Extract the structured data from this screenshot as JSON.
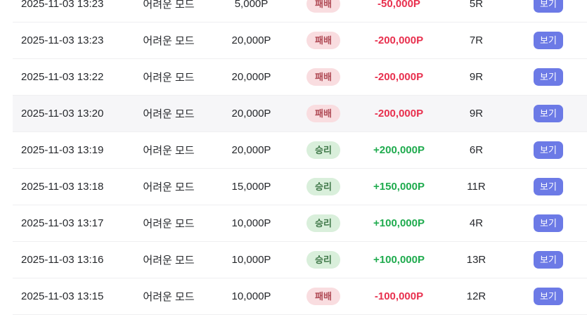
{
  "colors": {
    "win_text": "#1fab4e",
    "lose_text": "#e8304e",
    "win_badge_bg": "#d9efdb",
    "win_badge_text": "#41794a",
    "lose_badge_bg": "#f9dde0",
    "lose_badge_text": "#b04a55",
    "view_button_bg": "#6c7ae6",
    "highlight_row_bg": "#f6f6f8",
    "row_separator": "#efeff1"
  },
  "table": {
    "view_button_label": "보기",
    "rows": [
      {
        "time": "2025-11-03 13:23",
        "mode": "어려운 모드",
        "bet": "5,000P",
        "result": "lose",
        "result_label": "패배",
        "amount": "-50,000P",
        "rounds": "5R",
        "highlighted": false
      },
      {
        "time": "2025-11-03 13:23",
        "mode": "어려운 모드",
        "bet": "20,000P",
        "result": "lose",
        "result_label": "패배",
        "amount": "-200,000P",
        "rounds": "7R",
        "highlighted": false
      },
      {
        "time": "2025-11-03 13:22",
        "mode": "어려운 모드",
        "bet": "20,000P",
        "result": "lose",
        "result_label": "패배",
        "amount": "-200,000P",
        "rounds": "9R",
        "highlighted": false
      },
      {
        "time": "2025-11-03 13:20",
        "mode": "어려운 모드",
        "bet": "20,000P",
        "result": "lose",
        "result_label": "패배",
        "amount": "-200,000P",
        "rounds": "9R",
        "highlighted": true
      },
      {
        "time": "2025-11-03 13:19",
        "mode": "어려운 모드",
        "bet": "20,000P",
        "result": "win",
        "result_label": "승리",
        "amount": "+200,000P",
        "rounds": "6R",
        "highlighted": false
      },
      {
        "time": "2025-11-03 13:18",
        "mode": "어려운 모드",
        "bet": "15,000P",
        "result": "win",
        "result_label": "승리",
        "amount": "+150,000P",
        "rounds": "11R",
        "highlighted": false
      },
      {
        "time": "2025-11-03 13:17",
        "mode": "어려운 모드",
        "bet": "10,000P",
        "result": "win",
        "result_label": "승리",
        "amount": "+100,000P",
        "rounds": "4R",
        "highlighted": false
      },
      {
        "time": "2025-11-03 13:16",
        "mode": "어려운 모드",
        "bet": "10,000P",
        "result": "win",
        "result_label": "승리",
        "amount": "+100,000P",
        "rounds": "13R",
        "highlighted": false
      },
      {
        "time": "2025-11-03 13:15",
        "mode": "어려운 모드",
        "bet": "10,000P",
        "result": "lose",
        "result_label": "패배",
        "amount": "-100,000P",
        "rounds": "12R",
        "highlighted": false
      }
    ]
  }
}
